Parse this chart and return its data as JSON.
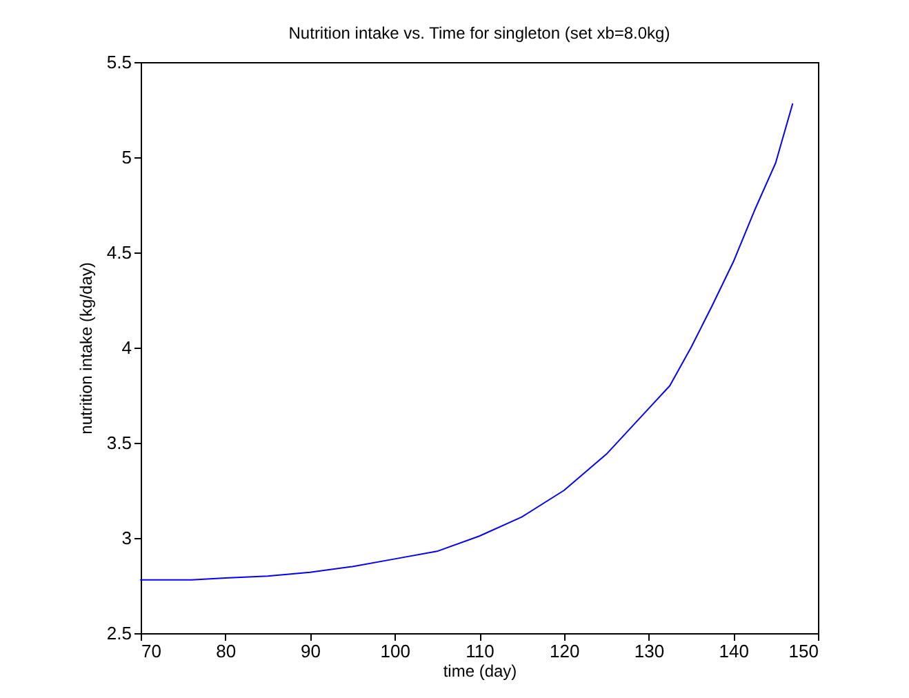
{
  "chart_data": {
    "type": "line",
    "title": "Nutrition intake vs. Time for singleton (set xb=8.0kg)",
    "xlabel": "time (day)",
    "ylabel": "nutrition intake (kg/day)",
    "x": [
      70,
      76,
      80,
      85,
      90,
      95,
      100,
      105,
      110,
      115,
      120,
      125,
      130,
      132.5,
      135,
      137.5,
      140,
      142.5,
      145,
      147
    ],
    "series": [
      {
        "color": "#0000ff",
        "values": [
          2.78,
          2.78,
          2.79,
          2.8,
          2.82,
          2.85,
          2.89,
          2.93,
          3.01,
          3.11,
          3.25,
          3.44,
          3.68,
          3.8,
          4.0,
          4.22,
          4.45,
          4.72,
          4.97,
          5.28
        ]
      }
    ],
    "xlim": [
      70,
      150
    ],
    "xticks": [
      70,
      80,
      90,
      100,
      110,
      120,
      130,
      140,
      150
    ],
    "ylim": [
      2.5,
      5.5
    ],
    "yticks": [
      2.5,
      3,
      3.5,
      4,
      4.5,
      5,
      5.5
    ],
    "grid": false,
    "marker": "none",
    "line_style": "solid"
  }
}
